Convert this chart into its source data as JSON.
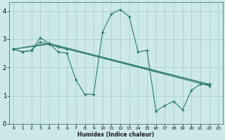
{
  "xlabel": "Humidex (Indice chaleur)",
  "xlim": [
    -0.5,
    23.5
  ],
  "ylim": [
    0,
    4.3
  ],
  "xticks": [
    0,
    1,
    2,
    3,
    4,
    5,
    6,
    7,
    8,
    9,
    10,
    11,
    12,
    13,
    14,
    15,
    16,
    17,
    18,
    19,
    20,
    21,
    22,
    23
  ],
  "yticks": [
    0,
    1,
    2,
    3,
    4
  ],
  "bg_color": "#cce8e8",
  "grid_color": "#aacece",
  "line_color": "#2d7a6a",
  "lines": [
    {
      "x": [
        0,
        1,
        2,
        3,
        4,
        5,
        6,
        7,
        8,
        9,
        10,
        11,
        12,
        13,
        14,
        15,
        16,
        17,
        18,
        19,
        20,
        21,
        22
      ],
      "y": [
        2.65,
        2.55,
        2.6,
        3.05,
        2.85,
        2.55,
        2.5,
        1.55,
        1.05,
        1.05,
        3.25,
        3.9,
        4.05,
        3.8,
        2.55,
        2.6,
        0.45,
        0.65,
        0.8,
        0.5,
        1.2,
        1.4,
        1.4
      ]
    },
    {
      "x": [
        0,
        1,
        2,
        3,
        4,
        5,
        6,
        22
      ],
      "y": [
        2.65,
        2.55,
        2.6,
        2.9,
        2.82,
        2.72,
        2.65,
        1.4
      ]
    },
    {
      "x": [
        0,
        4,
        22
      ],
      "y": [
        2.65,
        2.85,
        1.4
      ]
    },
    {
      "x": [
        0,
        4,
        22
      ],
      "y": [
        2.65,
        2.82,
        1.35
      ]
    }
  ],
  "figsize": [
    3.2,
    2.0
  ],
  "dpi": 100
}
